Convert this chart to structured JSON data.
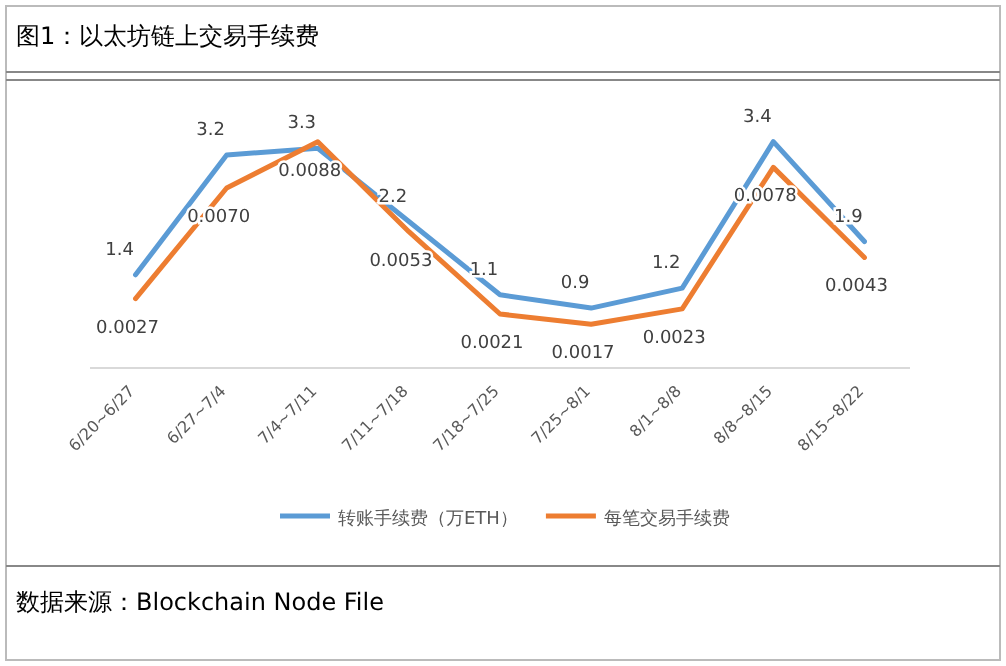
{
  "chart_data": {
    "type": "line",
    "title": "图1：以太坊链上交易手续费",
    "categories": [
      "6/20~6/27",
      "6/27~7/4",
      "7/4~7/11",
      "7/11~7/18",
      "7/18~7/25",
      "7/25~8/1",
      "8/1~8/8",
      "8/8~8/15",
      "8/15~8/22"
    ],
    "series": [
      {
        "name": "转账手续费（万ETH）",
        "color": "#5b9bd5",
        "values": [
          1.4,
          3.2,
          3.3,
          2.2,
          1.1,
          0.9,
          1.2,
          3.4,
          1.9
        ],
        "value_labels": [
          "1.4",
          "3.2",
          "3.3",
          "2.2",
          "1.1",
          "0.9",
          "1.2",
          "3.4",
          "1.9"
        ]
      },
      {
        "name": "每笔交易手续费",
        "color": "#ed7d31",
        "axis": "y2",
        "values": [
          0.0027,
          0.007,
          0.0088,
          0.0053,
          0.0021,
          0.0017,
          0.0023,
          0.0078,
          0.0043
        ],
        "value_labels": [
          "0.0027",
          "0.0070",
          "0.0088",
          "0.0053",
          "0.0021",
          "0.0017",
          "0.0023",
          "0.0078",
          "0.0043"
        ]
      }
    ],
    "tick_labels": "x",
    "legend": "bottom",
    "marker": "none",
    "line_style": "solid",
    "annotations": [
      "数据来源：Blockchain Node File"
    ]
  }
}
